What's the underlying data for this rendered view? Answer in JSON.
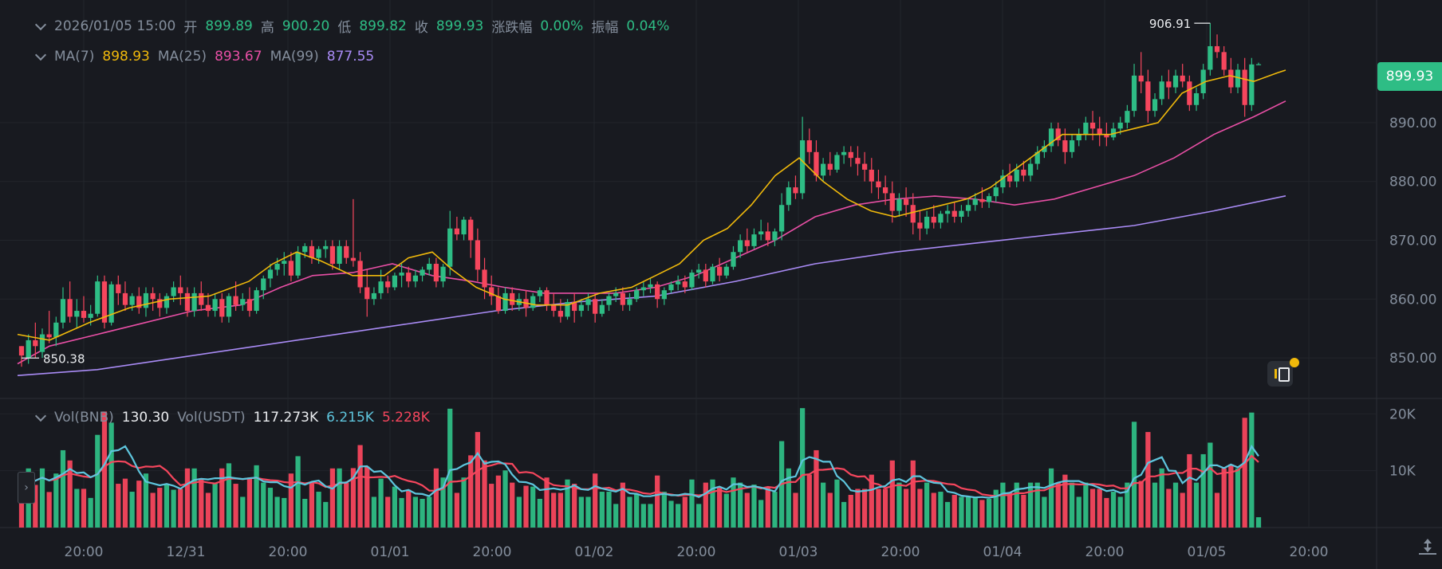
{
  "header": {
    "datetime": "2026/01/05 15:00",
    "open_label": "开",
    "open": "899.89",
    "high_label": "高",
    "high": "900.20",
    "low_label": "低",
    "low": "899.82",
    "close_label": "收",
    "close": "899.93",
    "change_label": "涨跌幅",
    "change": "0.00%",
    "amplitude_label": "振幅",
    "amplitude": "0.04%"
  },
  "ma_legend": {
    "ma7_label": "MA(7)",
    "ma7": "898.93",
    "ma25_label": "MA(25)",
    "ma25": "893.67",
    "ma99_label": "MA(99)",
    "ma99": "877.55"
  },
  "vol_legend": {
    "vol_bnb_label": "Vol(BNB)",
    "vol_bnb": "130.30",
    "vol_usdt_label": "Vol(USDT)",
    "vol_usdt": "117.273K",
    "vol_ma1": "6.215K",
    "vol_ma2": "5.228K"
  },
  "current_price": "899.93",
  "colors": {
    "up": "#2ebd85",
    "down": "#f6465d",
    "ma7": "#f0b90b",
    "ma25": "#e84fa5",
    "ma99": "#a98bf5",
    "vol_ma1": "#5ec5dd",
    "vol_ma2": "#f6465d",
    "background": "#181a20"
  },
  "icons": [
    "chevron-down-icon",
    "expand-panel-icon",
    "flag-note-icon",
    "reset-scale-icon"
  ],
  "chart_data": {
    "type": "candlestick",
    "price_axis": {
      "ticks": [
        "890.00",
        "880.00",
        "870.00",
        "860.00",
        "850.00"
      ],
      "ylim": [
        843.1,
        909.5
      ]
    },
    "volume_axis": {
      "ticks": [
        "20K",
        "10K"
      ],
      "ylim": [
        0,
        22000
      ]
    },
    "x_ticks": [
      "20:00",
      "12/31",
      "20:00",
      "01/01",
      "20:00",
      "01/02",
      "20:00",
      "01/03",
      "20:00",
      "01/04",
      "20:00",
      "01/05",
      "20:00"
    ],
    "high_marker": "906.91",
    "low_marker": "850.38",
    "candles": [
      [
        852,
        852,
        850.4,
        848.5
      ],
      [
        850,
        854,
        853,
        849
      ],
      [
        853,
        856,
        852,
        850
      ],
      [
        851,
        855,
        854,
        850
      ],
      [
        854,
        858,
        853.5,
        852.5
      ],
      [
        853.5,
        857,
        856,
        852
      ],
      [
        856,
        862,
        860,
        855
      ],
      [
        860,
        863,
        857,
        856
      ],
      [
        857,
        860,
        858,
        855
      ],
      [
        858,
        860.5,
        856.8,
        856
      ],
      [
        856.8,
        859,
        857.5,
        855.5
      ],
      [
        857.5,
        864,
        863,
        857
      ],
      [
        863,
        864,
        856,
        855
      ],
      [
        856,
        863,
        862.5,
        855.5
      ],
      [
        862.5,
        864,
        861,
        859
      ],
      [
        861,
        863,
        859,
        858
      ],
      [
        859,
        861,
        860.5,
        858
      ],
      [
        860.5,
        862,
        858.5,
        857.5
      ],
      [
        858.5,
        862,
        861,
        857
      ],
      [
        861,
        862,
        860,
        858
      ],
      [
        860,
        861,
        858.5,
        857
      ],
      [
        858.5,
        861,
        860.5,
        857.5
      ],
      [
        860.5,
        863,
        862,
        859.5
      ],
      [
        862,
        864,
        861,
        859
      ],
      [
        861,
        862,
        858,
        857
      ],
      [
        858,
        862,
        861,
        857
      ],
      [
        861,
        863,
        859,
        858
      ],
      [
        859,
        861,
        858,
        857
      ],
      [
        858,
        861,
        860,
        857
      ],
      [
        860,
        861,
        857,
        856
      ],
      [
        857,
        861,
        860.5,
        856
      ],
      [
        860.5,
        863,
        859,
        858
      ],
      [
        859,
        861,
        860,
        858
      ],
      [
        860,
        862,
        858,
        857
      ],
      [
        858,
        862,
        861.5,
        857.5
      ],
      [
        861.5,
        864,
        863.5,
        860
      ],
      [
        863.5,
        866,
        865,
        862
      ],
      [
        865,
        867,
        866,
        864
      ],
      [
        866,
        868,
        866.5,
        864
      ],
      [
        866.5,
        868,
        864,
        863
      ],
      [
        864,
        869,
        868,
        863.5
      ],
      [
        868,
        869.5,
        869,
        867
      ],
      [
        869,
        870,
        867,
        866
      ],
      [
        867,
        869,
        868.5,
        866
      ],
      [
        868.5,
        870,
        869,
        867
      ],
      [
        869,
        870,
        866,
        865
      ],
      [
        866,
        870,
        869,
        865
      ],
      [
        869,
        870,
        867,
        866
      ],
      [
        867,
        877,
        866.5,
        865.5
      ],
      [
        866.5,
        868,
        862,
        861
      ],
      [
        862,
        865,
        860,
        857
      ],
      [
        860,
        862,
        861,
        859
      ],
      [
        861,
        865,
        863,
        860
      ],
      [
        863,
        864,
        862,
        861
      ],
      [
        862,
        864.5,
        864,
        861.5
      ],
      [
        864,
        866,
        864.5,
        862
      ],
      [
        864.5,
        865.5,
        863,
        862
      ],
      [
        863,
        865,
        864,
        862
      ],
      [
        864,
        865.5,
        865,
        863
      ],
      [
        865,
        867,
        866,
        864
      ],
      [
        866,
        867,
        863,
        862
      ],
      [
        863,
        866,
        865.5,
        862
      ],
      [
        865.5,
        875,
        872,
        864
      ],
      [
        872,
        874,
        871,
        870
      ],
      [
        871,
        874,
        873.5,
        870
      ],
      [
        873.5,
        874,
        870,
        867
      ],
      [
        870,
        872,
        865,
        863
      ],
      [
        865,
        867,
        862,
        860
      ],
      [
        862,
        864,
        860.5,
        859
      ],
      [
        860.5,
        862,
        858,
        857.5
      ],
      [
        858,
        862,
        861,
        857.5
      ],
      [
        861,
        862,
        859,
        858
      ],
      [
        859,
        861,
        860,
        858
      ],
      [
        860,
        861.5,
        858.5,
        857
      ],
      [
        858.5,
        861,
        860.5,
        858
      ],
      [
        860.5,
        862,
        861.5,
        859.5
      ],
      [
        861.5,
        862,
        859,
        858
      ],
      [
        859,
        861,
        858,
        857
      ],
      [
        858,
        860,
        857,
        856
      ],
      [
        857,
        860,
        859.5,
        856.5
      ],
      [
        859.5,
        861,
        858,
        856
      ],
      [
        858,
        860,
        859,
        857
      ],
      [
        859,
        861,
        860,
        858
      ],
      [
        860,
        861,
        857.5,
        856
      ],
      [
        857.5,
        860,
        859,
        857
      ],
      [
        859,
        861,
        860.5,
        858
      ],
      [
        860.5,
        862,
        861,
        859.5
      ],
      [
        861,
        862,
        859,
        858
      ],
      [
        859,
        861,
        860,
        858
      ],
      [
        860,
        862,
        861.5,
        859.5
      ],
      [
        861.5,
        863,
        862,
        860.5
      ],
      [
        862,
        863.5,
        862.5,
        861
      ],
      [
        862.5,
        863,
        860,
        858.5
      ],
      [
        860,
        862,
        861.5,
        859
      ],
      [
        861.5,
        863,
        862.5,
        861
      ],
      [
        862.5,
        864,
        863,
        861.5
      ],
      [
        863,
        864,
        862,
        861
      ],
      [
        862,
        865,
        864.5,
        861.5
      ],
      [
        864.5,
        866,
        865,
        863.5
      ],
      [
        865,
        866,
        863,
        862
      ],
      [
        863,
        866,
        865.5,
        862.5
      ],
      [
        865.5,
        867,
        864,
        863
      ],
      [
        864,
        866,
        865.5,
        863.5
      ],
      [
        865.5,
        869,
        868,
        865
      ],
      [
        868,
        871,
        870,
        867
      ],
      [
        870,
        872,
        869,
        868
      ],
      [
        869,
        872,
        871,
        868.5
      ],
      [
        871,
        873.5,
        871.5,
        870
      ],
      [
        871.5,
        873,
        870,
        869
      ],
      [
        870,
        872,
        871.5,
        869
      ],
      [
        871.5,
        878,
        876,
        870
      ],
      [
        876,
        880,
        879,
        875
      ],
      [
        879,
        881,
        878,
        877
      ],
      [
        878,
        891,
        887,
        877
      ],
      [
        887,
        889,
        885,
        883
      ],
      [
        885,
        887,
        881,
        880
      ],
      [
        881,
        884,
        883,
        880
      ],
      [
        883,
        885,
        882,
        881
      ],
      [
        882,
        885,
        884.5,
        881.5
      ],
      [
        884.5,
        886,
        885,
        883
      ],
      [
        885,
        886,
        884,
        882.5
      ],
      [
        884,
        886,
        883,
        881
      ],
      [
        883,
        885,
        882,
        880
      ],
      [
        882,
        884,
        880,
        878
      ],
      [
        880,
        882,
        879,
        877
      ],
      [
        879,
        881,
        878,
        876
      ],
      [
        878,
        880,
        875,
        873
      ],
      [
        875,
        878,
        877,
        874
      ],
      [
        877,
        879,
        876,
        874
      ],
      [
        876,
        878,
        873,
        871
      ],
      [
        873,
        875,
        872,
        870
      ],
      [
        872,
        875,
        874,
        871
      ],
      [
        874,
        876,
        873,
        872
      ],
      [
        873,
        875,
        874.5,
        872
      ],
      [
        874.5,
        876,
        875,
        873
      ],
      [
        875,
        876.5,
        874,
        873
      ],
      [
        874,
        876,
        875,
        873
      ],
      [
        875,
        877,
        876,
        874
      ],
      [
        876,
        878,
        877,
        875
      ],
      [
        877,
        879,
        876.5,
        875.5
      ],
      [
        876.5,
        878,
        877.5,
        875.5
      ],
      [
        877.5,
        880,
        879,
        876.5
      ],
      [
        879,
        882,
        881,
        878
      ],
      [
        881,
        883,
        880,
        879
      ],
      [
        880,
        883,
        882,
        879
      ],
      [
        882,
        883.5,
        881,
        880
      ],
      [
        881,
        884,
        883,
        880
      ],
      [
        883,
        886,
        885,
        882
      ],
      [
        885,
        887,
        886,
        884
      ],
      [
        886,
        890,
        889,
        885
      ],
      [
        889,
        890,
        887,
        886
      ],
      [
        887,
        889,
        885,
        883
      ],
      [
        885,
        888,
        887,
        884
      ],
      [
        887,
        889,
        888,
        886
      ],
      [
        888,
        891,
        890,
        887
      ],
      [
        890,
        892,
        889,
        887
      ],
      [
        889,
        891,
        888,
        886
      ],
      [
        888,
        890,
        887.5,
        886
      ],
      [
        887.5,
        890,
        889,
        887
      ],
      [
        889,
        891,
        890,
        888
      ],
      [
        890,
        893,
        892,
        889
      ],
      [
        892,
        900,
        898,
        891
      ],
      [
        898,
        902,
        897,
        895
      ],
      [
        897,
        899,
        892,
        890
      ],
      [
        892,
        895,
        894,
        891
      ],
      [
        894,
        898,
        897,
        893
      ],
      [
        897,
        899,
        896,
        894
      ],
      [
        896,
        899,
        898,
        895
      ],
      [
        898,
        900,
        897,
        896
      ],
      [
        897,
        898,
        893,
        892
      ],
      [
        893,
        896,
        895,
        892
      ],
      [
        895,
        900,
        899,
        894
      ],
      [
        899,
        906.9,
        903,
        898
      ],
      [
        903,
        905,
        902,
        901
      ],
      [
        902,
        903,
        899,
        898
      ],
      [
        899,
        901,
        896,
        895
      ],
      [
        896,
        900,
        899,
        895
      ],
      [
        899,
        901,
        893,
        891
      ],
      [
        893,
        901,
        899.9,
        892
      ],
      [
        899.9,
        900.2,
        899.93,
        899.82
      ]
    ],
    "ma7": [
      [
        0,
        854
      ],
      [
        40,
        853
      ],
      [
        90,
        856
      ],
      [
        140,
        858.5
      ],
      [
        190,
        860
      ],
      [
        240,
        860.5
      ],
      [
        290,
        863
      ],
      [
        320,
        866
      ],
      [
        350,
        868
      ],
      [
        380,
        866.5
      ],
      [
        420,
        864
      ],
      [
        460,
        864
      ],
      [
        490,
        867
      ],
      [
        520,
        868
      ],
      [
        545,
        865
      ],
      [
        575,
        862
      ],
      [
        610,
        860
      ],
      [
        650,
        859
      ],
      [
        690,
        859
      ],
      [
        730,
        861
      ],
      [
        770,
        862
      ],
      [
        800,
        864
      ],
      [
        830,
        866
      ],
      [
        860,
        870
      ],
      [
        890,
        872
      ],
      [
        920,
        876
      ],
      [
        950,
        881
      ],
      [
        980,
        884
      ],
      [
        1010,
        880
      ],
      [
        1040,
        877
      ],
      [
        1070,
        875
      ],
      [
        1100,
        874
      ],
      [
        1130,
        875
      ],
      [
        1160,
        876
      ],
      [
        1190,
        877
      ],
      [
        1220,
        879
      ],
      [
        1250,
        882
      ],
      [
        1280,
        885
      ],
      [
        1310,
        888
      ],
      [
        1340,
        888
      ],
      [
        1370,
        888
      ],
      [
        1400,
        889
      ],
      [
        1430,
        890
      ],
      [
        1460,
        895
      ],
      [
        1490,
        897
      ],
      [
        1520,
        898
      ],
      [
        1550,
        897
      ],
      [
        1580,
        898.5
      ],
      [
        1590,
        898.93
      ]
    ],
    "ma25": [
      [
        0,
        849
      ],
      [
        40,
        852
      ],
      [
        100,
        854
      ],
      [
        160,
        856
      ],
      [
        220,
        858
      ],
      [
        280,
        859
      ],
      [
        330,
        862
      ],
      [
        370,
        864
      ],
      [
        420,
        864.5
      ],
      [
        470,
        866
      ],
      [
        520,
        864
      ],
      [
        570,
        863
      ],
      [
        610,
        862
      ],
      [
        660,
        861
      ],
      [
        700,
        861
      ],
      [
        750,
        861
      ],
      [
        800,
        862
      ],
      [
        850,
        864
      ],
      [
        900,
        867
      ],
      [
        950,
        870
      ],
      [
        1000,
        874
      ],
      [
        1050,
        876
      ],
      [
        1100,
        877
      ],
      [
        1150,
        877.5
      ],
      [
        1200,
        877
      ],
      [
        1250,
        876
      ],
      [
        1300,
        877
      ],
      [
        1350,
        879
      ],
      [
        1400,
        881
      ],
      [
        1450,
        884
      ],
      [
        1500,
        888
      ],
      [
        1550,
        891
      ],
      [
        1590,
        893.67
      ]
    ],
    "ma99": [
      [
        0,
        847
      ],
      [
        100,
        848
      ],
      [
        200,
        850
      ],
      [
        300,
        852
      ],
      [
        400,
        854
      ],
      [
        500,
        856
      ],
      [
        600,
        858
      ],
      [
        700,
        859.5
      ],
      [
        800,
        860.5
      ],
      [
        900,
        863
      ],
      [
        1000,
        866
      ],
      [
        1100,
        868
      ],
      [
        1200,
        869.5
      ],
      [
        1300,
        871
      ],
      [
        1400,
        872.5
      ],
      [
        1500,
        875
      ],
      [
        1590,
        877.55
      ]
    ]
  }
}
